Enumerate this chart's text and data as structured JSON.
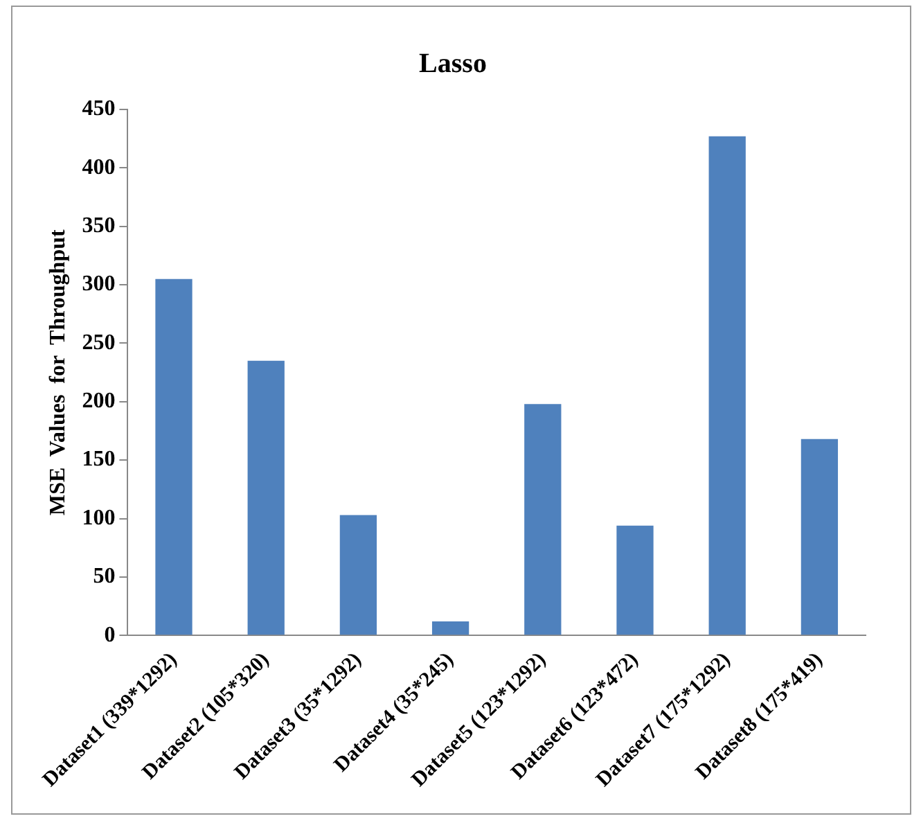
{
  "chart_data": {
    "type": "bar",
    "title": "Lasso",
    "ylabel": "MSE  Values  for  Throughput",
    "categories": [
      "Dataset1 (339*1292)",
      "Dataset2 (105*320)",
      "Dataset3 (35*1292)",
      "Dataset4 (35*245)",
      "Dataset5 (123*1292)",
      "Dataset6 (123*472)",
      "Dataset7 (175*1292)",
      "Dataset8 (175*419)"
    ],
    "values": [
      305,
      235,
      103,
      12,
      198,
      94,
      427,
      168
    ],
    "color": "#4f81bd",
    "ylim": [
      0,
      450
    ],
    "yticks": [
      0,
      50,
      100,
      150,
      200,
      250,
      300,
      350,
      400,
      450
    ],
    "grid": false,
    "legend": false
  }
}
